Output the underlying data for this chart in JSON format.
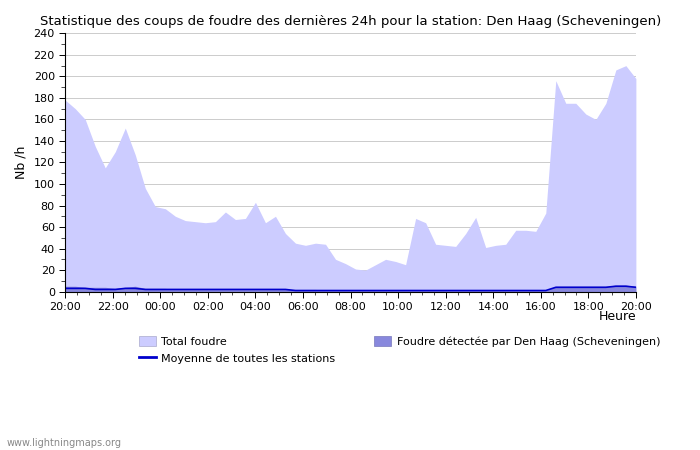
{
  "title": "Statistique des coups de foudre des dernières 24h pour la station: Den Haag (Scheveningen)",
  "xlabel": "Heure",
  "ylabel": "Nb /h",
  "watermark": "www.lightningmaps.org",
  "xlim": [
    0,
    48
  ],
  "ylim": [
    0,
    240
  ],
  "ytick_major": [
    0,
    20,
    40,
    60,
    80,
    100,
    120,
    140,
    160,
    180,
    200,
    220,
    240
  ],
  "ytick_minor_spacing": 10,
  "xtick_labels": [
    "20:00",
    "22:00",
    "00:00",
    "02:00",
    "04:00",
    "06:00",
    "08:00",
    "10:00",
    "12:00",
    "14:00",
    "16:00",
    "18:00",
    "20:00"
  ],
  "xtick_positions": [
    0,
    4,
    8,
    12,
    16,
    20,
    24,
    28,
    32,
    36,
    40,
    44,
    48
  ],
  "total_foudre_color": "#ccccff",
  "detected_foudre_color": "#8888dd",
  "moyenne_color": "#0000cc",
  "background_color": "#ffffff",
  "grid_color": "#cccccc",
  "total_foudre": [
    178,
    170,
    160,
    135,
    115,
    130,
    152,
    127,
    96,
    79,
    77,
    70,
    66,
    65,
    64,
    65,
    74,
    67,
    68,
    83,
    64,
    70,
    54,
    45,
    43,
    45,
    44,
    30,
    26,
    21,
    20,
    25,
    30,
    28,
    25,
    68,
    64,
    44,
    43,
    42,
    54,
    69,
    41,
    43,
    44,
    57,
    57,
    56,
    73,
    196,
    175,
    175,
    165,
    160,
    175,
    206,
    210,
    198
  ],
  "detected_foudre": [
    5,
    5,
    4,
    4,
    4,
    3,
    4,
    5,
    3,
    3,
    3,
    2,
    2,
    2,
    2,
    2,
    2,
    2,
    2,
    2,
    2,
    2,
    2,
    2,
    2,
    2,
    1,
    1,
    1,
    1,
    1,
    1,
    1,
    1,
    1,
    1,
    1,
    1,
    1,
    1,
    1,
    1,
    1,
    1,
    1,
    1,
    1,
    1,
    1,
    5,
    5,
    5,
    5,
    5,
    5,
    6,
    6,
    5
  ],
  "moyenne": [
    3,
    3,
    3,
    2,
    2,
    2,
    3,
    3,
    2,
    2,
    2,
    2,
    2,
    2,
    2,
    2,
    2,
    2,
    2,
    2,
    2,
    2,
    2,
    1,
    1,
    1,
    1,
    1,
    1,
    1,
    1,
    1,
    1,
    1,
    1,
    1,
    1,
    1,
    1,
    1,
    1,
    1,
    1,
    1,
    1,
    1,
    1,
    1,
    1,
    4,
    4,
    4,
    4,
    4,
    4,
    5,
    5,
    4
  ],
  "n_points": 58,
  "legend_total_label": "Total foudre",
  "legend_detected_label": "Foudre détectée par Den Haag (Scheveningen)",
  "legend_moyenne_label": "Moyenne de toutes les stations"
}
